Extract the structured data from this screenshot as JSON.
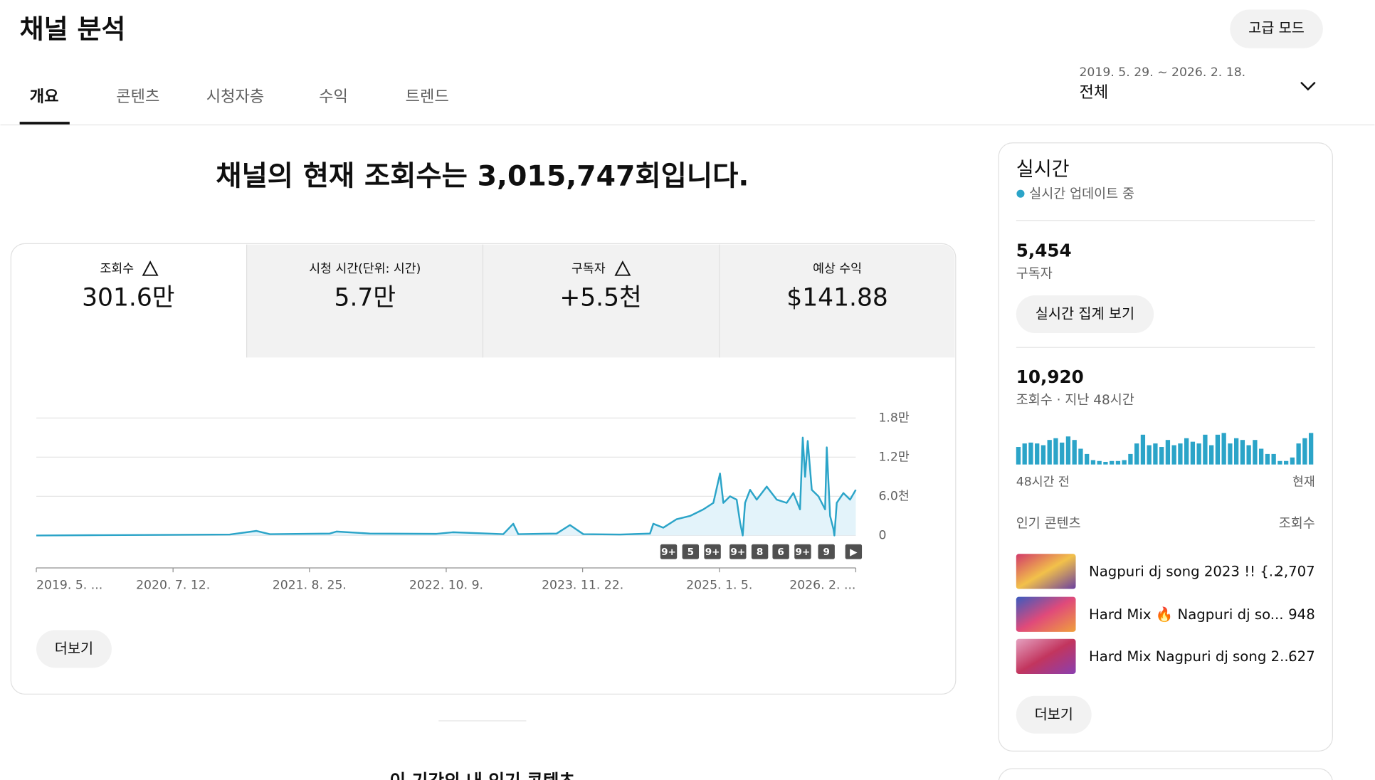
{
  "header": {
    "title": "채널 분석",
    "advanced_button": "고급 모드"
  },
  "tabs": [
    "개요",
    "콘텐츠",
    "시청자층",
    "수익",
    "트렌드"
  ],
  "date_range": {
    "range": "2019. 5. 29. ~ 2026. 2. 18.",
    "label": "전체"
  },
  "headline": "채널의 현재 조회수는 3,015,747회입니다.",
  "metrics": [
    {
      "label": "조회수",
      "value": "301.6만"
    },
    {
      "label": "시청 시간(단위: 시간)",
      "value": "5.7만"
    },
    {
      "label": "구독자",
      "value": "+5.5천"
    },
    {
      "label": "예상 수익",
      "value": "$141.88"
    }
  ],
  "more_button": "더보기",
  "section_title": "이 기간의 내 인기 콘텐츠",
  "chart_data": [
    {
      "type": "area",
      "color": "#2ba4c8",
      "x": [
        0,
        200,
        380,
        580,
        660,
        700,
        880,
        900,
        1000,
        1200,
        1250,
        1400,
        1430,
        1445,
        1560,
        1600,
        1640,
        1750,
        1840,
        1850,
        1880,
        1920,
        1960,
        2000,
        2030,
        2050,
        2060,
        2080,
        2100,
        2110,
        2118,
        2125,
        2140,
        2160,
        2190,
        2220,
        2250,
        2270,
        2290,
        2298,
        2305,
        2313,
        2325,
        2345,
        2365,
        2370,
        2380,
        2390,
        2393,
        2400,
        2420,
        2440,
        2457
      ],
      "values": [
        0,
        50,
        100,
        150,
        700,
        200,
        300,
        600,
        300,
        250,
        500,
        200,
        1800,
        200,
        300,
        1600,
        200,
        150,
        300,
        1800,
        1200,
        2500,
        3000,
        4000,
        5000,
        9500,
        5000,
        6000,
        5500,
        2000,
        0,
        5000,
        7000,
        5500,
        7500,
        5500,
        5000,
        6500,
        4000,
        15000,
        9000,
        14500,
        7000,
        6000,
        4000,
        13500,
        3000,
        1000,
        0,
        5000,
        6500,
        5500,
        7000
      ],
      "xlim": [
        0,
        2457
      ],
      "xticks": [
        {
          "value": 0,
          "label": "2019. 5. ..."
        },
        {
          "value": 410,
          "label": "2020. 7. 12."
        },
        {
          "value": 819,
          "label": "2021. 8. 25."
        },
        {
          "value": 1229,
          "label": "2022. 10. 9."
        },
        {
          "value": 1638,
          "label": "2023. 11. 22."
        },
        {
          "value": 2048,
          "label": "2025. 1. 5."
        },
        {
          "value": 2457,
          "label": "2026. 2. ..."
        }
      ],
      "ylim": [
        0,
        18000
      ],
      "yticks": [
        0,
        {
          "value": 6000,
          "label": "6.0천"
        },
        {
          "value": 12000,
          "label": "1.2만"
        },
        {
          "value": 18000,
          "label": "1.8만"
        }
      ],
      "grid": true,
      "annotations": [
        "9+",
        "5",
        "9+",
        "9+",
        "8",
        "6",
        "9+",
        "9",
        "▶"
      ]
    },
    {
      "type": "bar",
      "color": "#2ba4c8",
      "values": [
        180,
        216,
        225,
        216,
        198,
        252,
        270,
        225,
        288,
        252,
        162,
        108,
        45,
        36,
        27,
        36,
        36,
        45,
        108,
        216,
        306,
        198,
        216,
        180,
        252,
        198,
        216,
        270,
        234,
        216,
        306,
        198,
        306,
        324,
        216,
        270,
        252,
        198,
        252,
        162,
        108,
        108,
        36,
        36,
        72,
        216,
        270,
        324
      ],
      "xticks": [
        "48시간 전",
        "현재"
      ]
    }
  ],
  "realtime": {
    "title": "실시간",
    "status": "실시간 업데이트 중",
    "subscribers": "5,454",
    "subscribers_label": "구독자",
    "realtime_button": "실시간 집계 보기",
    "views": "10,920",
    "views_label": "조회수 · 지난 48시간",
    "top_content_label": "인기 콘텐츠",
    "views_column": "조회수",
    "top_content": [
      {
        "title": "Nagpuri dj song 2023 !! {...",
        "views": "2,707"
      },
      {
        "title": "Hard Mix 🔥 Nagpuri dj so...",
        "views": "948"
      },
      {
        "title": "Hard Mix Nagpuri dj song 2...",
        "views": "627"
      }
    ],
    "more_button": "더보기"
  }
}
